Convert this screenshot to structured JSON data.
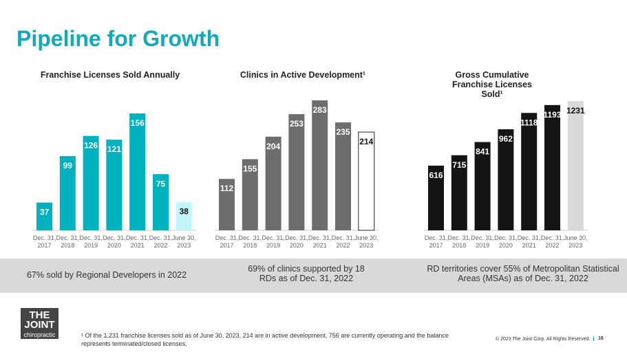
{
  "title": "Pipeline for Growth",
  "chart_data": [
    {
      "type": "bar",
      "title": "Franchise Licenses Sold Annually",
      "categories": [
        "Dec. 31, 2017",
        "Dec. 31, 2018",
        "Dec. 31, 2019",
        "Dec. 31, 2020",
        "Dec. 31, 2021",
        "Dec. 31, 2022",
        "June 30, 2023"
      ],
      "values": [
        37,
        99,
        126,
        121,
        156,
        75,
        38
      ],
      "color": "#00b1bf",
      "last_color": "#c3f6fb",
      "ylim": [
        0,
        156
      ]
    },
    {
      "type": "bar",
      "title": "Clinics in Active Development¹",
      "categories": [
        "Dec. 31, 2017",
        "Dec. 31, 2018",
        "Dec. 31, 2019",
        "Dec. 31, 2020",
        "Dec. 31, 2021",
        "Dec. 31, 2022",
        "June 30, 2023"
      ],
      "values": [
        112,
        155,
        204,
        253,
        283,
        235,
        214
      ],
      "color": "#6d6e6b",
      "last_color": "#ffffff",
      "ylim": [
        0,
        283
      ]
    },
    {
      "type": "bar",
      "title": "Gross Cumulative Franchise Licenses Sold¹",
      "categories": [
        "Dec. 31, 2017",
        "Dec. 31, 2018",
        "Dec. 31, 2019",
        "Dec. 31, 2020",
        "Dec. 31, 2021",
        "Dec. 31, 2022",
        "June 30, 2023"
      ],
      "values": [
        616,
        715,
        841,
        962,
        1118,
        1193,
        1231
      ],
      "color": "#141414",
      "last_color": "#d9d9d9",
      "ylim": [
        0,
        1231
      ]
    }
  ],
  "band": [
    "67% sold by Regional Developers in 2022",
    "69% of clinics supported by 18 RDs as of Dec. 31, 2022",
    "RD territories cover 55% of Metropolitan Statistical Areas (MSAs) as of Dec. 31,  2022"
  ],
  "logo": {
    "line1": "THE JOINT",
    "line2": "chiropractic"
  },
  "footnote": "¹ Of the 1,231 franchise licenses sold as of June 30, 2023, 214 are in active development, 756 are currently operating and the balance represents terminated/closed licenses.",
  "copyright": "© 2023 The Joint Corp. All Rights Reserved.",
  "page": "16"
}
